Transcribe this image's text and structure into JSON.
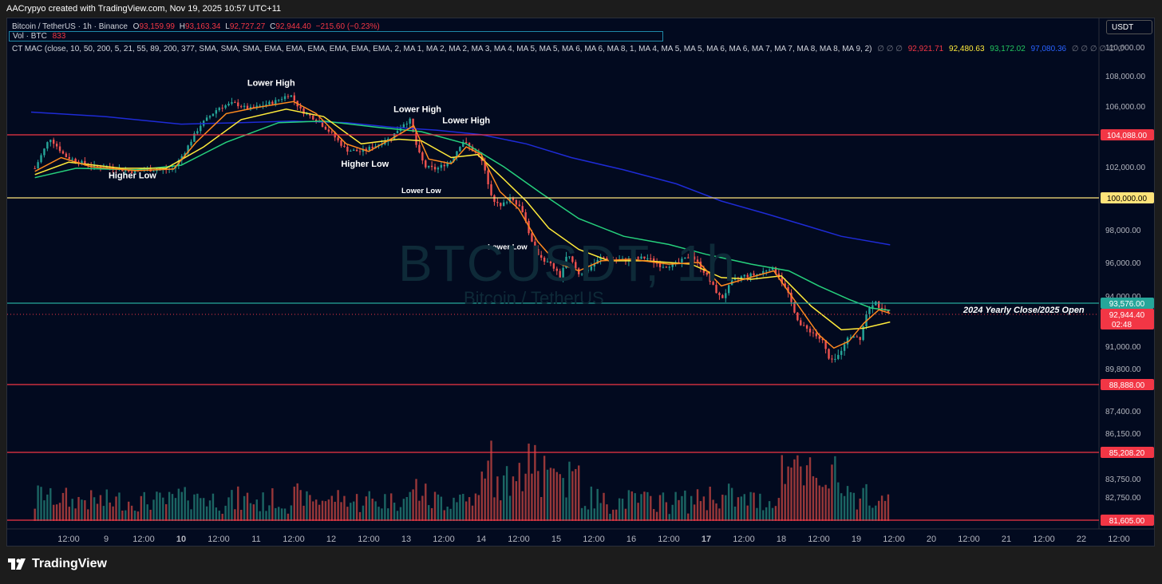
{
  "header": {
    "caption": "AACrypyo created with TradingView.com, Nov 19, 2025 10:57 UTC+11"
  },
  "legend": {
    "symbol": "Bitcoin / TetherUS · 1h · Binance",
    "open_label": "O",
    "open": "93,159.99",
    "high_label": "H",
    "high": "93,163.34",
    "low_label": "L",
    "low": "92,727.27",
    "close_label": "C",
    "close": "92,944.40",
    "change": "−215.60 (−0.23%)",
    "vol_label": "Vol · BTC",
    "vol_value": "833",
    "indicator": "CT MAC (close, 10, 50, 200, 5, 21, 55, 89, 200, 377, SMA, SMA, SMA, EMA, EMA, EMA, EMA, EMA, EMA, 2, MA 1, MA 2, MA 2, MA 3, MA 4, MA 5, MA 5, MA 6, MA 6, MA 8, 1, MA 4, MA 5, MA 5, MA 6, MA 6, MA 7, MA 7, MA 8, MA 8, MA 9, 2)",
    "empty_values": "∅  ∅  ∅",
    "ma_values": [
      "92,921.71",
      "92,480.63",
      "93,172.02",
      "97,080.36"
    ],
    "trailing": "∅  ∅  ∅  ∅  ∅  ∅"
  },
  "watermark": {
    "symbol": "BTCUSDT, 1h",
    "name": "Bitcoin / TetherUS"
  },
  "currency_button": "USDT",
  "level_caption": "2024 Yearly Close/2025 Open",
  "colors": {
    "background": "#020a1f",
    "up": "#26a69a",
    "down": "#ef5350",
    "ma_fast": "#ff8a1f",
    "ma_mid": "#ffeb3b",
    "ma_green": "#26d07c",
    "ma_blue": "#1e2bd6",
    "level_red": "#f23645",
    "level_yellow": "#ffe37a",
    "level_green": "#26a69a"
  },
  "logo": "TradingView",
  "chart_data": {
    "type": "candlestick",
    "title": "",
    "price_axis_ticks": [
      "110,000.00",
      "108,000.00",
      "106,000.00",
      "102,000.00",
      "98,000.00",
      "96,000.00",
      "94,000.00",
      "91,000.00",
      "89,800.00",
      "87,400.00",
      "86,150.00",
      "83,750.00",
      "82,750.00"
    ],
    "time_axis_ticks": [
      "12:00",
      "9",
      "12:00",
      "10",
      "12:00",
      "11",
      "12:00",
      "12",
      "12:00",
      "13",
      "12:00",
      "14",
      "12:00",
      "15",
      "12:00",
      "16",
      "12:00",
      "17",
      "12:00",
      "18",
      "12:00",
      "19",
      "12:00",
      "20",
      "12:00",
      "21",
      "12:00",
      "22",
      "12:00"
    ],
    "horizontal_levels": [
      {
        "price": 104088,
        "label": "104,088.00",
        "color": "red"
      },
      {
        "price": 100000,
        "label": "100,000.00",
        "color": "yellow"
      },
      {
        "price": 93576,
        "label": "93,576.00",
        "color": "green"
      },
      {
        "price": 92944.4,
        "label": "92,944.40",
        "sub": "02:48",
        "color": "red",
        "dotted": true
      },
      {
        "price": 88888,
        "label": "88,888.00",
        "color": "red"
      },
      {
        "price": 85208.2,
        "label": "85,208.20",
        "color": "red"
      },
      {
        "price": 81605,
        "label": "81,605.00",
        "color": "red"
      }
    ],
    "annotations": [
      {
        "text": "Lower High",
        "time": 11.2,
        "price": 107350
      },
      {
        "text": "Higher Low",
        "time": 9.35,
        "price": 101250
      },
      {
        "text": "Lower High",
        "time": 13.15,
        "price": 105600
      },
      {
        "text": "Higher Low",
        "time": 12.45,
        "price": 102000
      },
      {
        "text": "Lower High",
        "time": 13.8,
        "price": 104850
      },
      {
        "text": "Lower Low",
        "time": 13.2,
        "price": 100300
      },
      {
        "text": "Lower Low",
        "time": 14.35,
        "price": 96800
      }
    ],
    "price_path": [
      [
        8.05,
        101900
      ],
      [
        8.25,
        103900
      ],
      [
        8.45,
        102700
      ],
      [
        8.65,
        102300
      ],
      [
        8.85,
        102000
      ],
      [
        9.1,
        101950
      ],
      [
        9.3,
        101700
      ],
      [
        9.55,
        101800
      ],
      [
        9.75,
        101800
      ],
      [
        9.9,
        101900
      ],
      [
        10.05,
        103000
      ],
      [
        10.25,
        104700
      ],
      [
        10.5,
        105900
      ],
      [
        10.7,
        106200
      ],
      [
        10.9,
        105800
      ],
      [
        11.05,
        106000
      ],
      [
        11.25,
        106300
      ],
      [
        11.45,
        106800
      ],
      [
        11.6,
        105700
      ],
      [
        11.8,
        105100
      ],
      [
        12.0,
        104200
      ],
      [
        12.2,
        103100
      ],
      [
        12.4,
        103000
      ],
      [
        12.6,
        103400
      ],
      [
        12.8,
        103900
      ],
      [
        12.95,
        104800
      ],
      [
        13.05,
        105050
      ],
      [
        13.15,
        103100
      ],
      [
        13.25,
        102000
      ],
      [
        13.4,
        101850
      ],
      [
        13.6,
        102400
      ],
      [
        13.75,
        103700
      ],
      [
        13.85,
        103250
      ],
      [
        14.0,
        102500
      ],
      [
        14.15,
        100000
      ],
      [
        14.25,
        99400
      ],
      [
        14.4,
        100100
      ],
      [
        14.55,
        99200
      ],
      [
        14.7,
        96800
      ],
      [
        14.85,
        96100
      ],
      [
        14.95,
        95800
      ],
      [
        15.05,
        95100
      ],
      [
        15.15,
        96500
      ],
      [
        15.3,
        95300
      ],
      [
        15.4,
        95500
      ],
      [
        15.6,
        96300
      ],
      [
        15.8,
        96100
      ],
      [
        16.0,
        96200
      ],
      [
        16.2,
        96300
      ],
      [
        16.4,
        95800
      ],
      [
        16.6,
        95900
      ],
      [
        16.8,
        96450
      ],
      [
        16.95,
        95600
      ],
      [
        17.1,
        94500
      ],
      [
        17.2,
        93800
      ],
      [
        17.35,
        94900
      ],
      [
        17.5,
        95200
      ],
      [
        17.7,
        95300
      ],
      [
        17.85,
        95700
      ],
      [
        17.95,
        95350
      ],
      [
        18.1,
        94000
      ],
      [
        18.25,
        92300
      ],
      [
        18.4,
        91900
      ],
      [
        18.55,
        91300
      ],
      [
        18.65,
        90100
      ],
      [
        18.75,
        90400
      ],
      [
        18.85,
        91300
      ],
      [
        18.95,
        91700
      ],
      [
        19.05,
        91500
      ],
      [
        19.15,
        93300
      ],
      [
        19.25,
        93700
      ],
      [
        19.35,
        93100
      ],
      [
        19.45,
        92944
      ]
    ],
    "ma_fast_path": [
      [
        8.05,
        101700
      ],
      [
        8.4,
        102600
      ],
      [
        8.8,
        102000
      ],
      [
        9.4,
        101750
      ],
      [
        9.9,
        101850
      ],
      [
        10.2,
        103600
      ],
      [
        10.6,
        105500
      ],
      [
        11.0,
        105900
      ],
      [
        11.5,
        106300
      ],
      [
        11.8,
        105500
      ],
      [
        12.2,
        103500
      ],
      [
        12.5,
        103000
      ],
      [
        12.9,
        104100
      ],
      [
        13.1,
        104700
      ],
      [
        13.3,
        102500
      ],
      [
        13.6,
        102200
      ],
      [
        13.8,
        103300
      ],
      [
        14.0,
        102800
      ],
      [
        14.25,
        100400
      ],
      [
        14.5,
        99300
      ],
      [
        14.75,
        97300
      ],
      [
        15.0,
        96000
      ],
      [
        15.3,
        95500
      ],
      [
        15.6,
        96100
      ],
      [
        16.0,
        96200
      ],
      [
        16.5,
        95900
      ],
      [
        16.9,
        96000
      ],
      [
        17.2,
        94600
      ],
      [
        17.5,
        95000
      ],
      [
        17.9,
        95500
      ],
      [
        18.2,
        93600
      ],
      [
        18.5,
        91700
      ],
      [
        18.7,
        90900
      ],
      [
        18.9,
        91300
      ],
      [
        19.1,
        92400
      ],
      [
        19.3,
        93200
      ],
      [
        19.45,
        93000
      ]
    ],
    "ma_mid_path": [
      [
        8.05,
        101500
      ],
      [
        8.5,
        102300
      ],
      [
        9.2,
        101900
      ],
      [
        9.8,
        101900
      ],
      [
        10.3,
        103300
      ],
      [
        10.8,
        105100
      ],
      [
        11.4,
        105800
      ],
      [
        11.9,
        105300
      ],
      [
        12.4,
        103500
      ],
      [
        12.9,
        103800
      ],
      [
        13.2,
        103700
      ],
      [
        13.6,
        102600
      ],
      [
        13.95,
        102800
      ],
      [
        14.3,
        101200
      ],
      [
        14.6,
        99800
      ],
      [
        14.9,
        98100
      ],
      [
        15.3,
        96800
      ],
      [
        15.7,
        96100
      ],
      [
        16.2,
        96100
      ],
      [
        16.8,
        95900
      ],
      [
        17.2,
        95100
      ],
      [
        17.6,
        95000
      ],
      [
        18.0,
        95200
      ],
      [
        18.4,
        93400
      ],
      [
        18.8,
        92000
      ],
      [
        19.1,
        92100
      ],
      [
        19.45,
        92480
      ]
    ],
    "ma_green_path": [
      [
        8.05,
        101300
      ],
      [
        8.6,
        101900
      ],
      [
        9.4,
        101800
      ],
      [
        10.0,
        102100
      ],
      [
        10.6,
        103600
      ],
      [
        11.3,
        104900
      ],
      [
        11.9,
        105000
      ],
      [
        12.6,
        104600
      ],
      [
        13.2,
        104300
      ],
      [
        13.8,
        103500
      ],
      [
        14.3,
        102000
      ],
      [
        14.8,
        100300
      ],
      [
        15.3,
        98700
      ],
      [
        15.9,
        97600
      ],
      [
        16.5,
        97100
      ],
      [
        17.0,
        96500
      ],
      [
        17.6,
        95900
      ],
      [
        18.1,
        95500
      ],
      [
        18.5,
        94600
      ],
      [
        18.9,
        93800
      ],
      [
        19.2,
        93300
      ],
      [
        19.45,
        93172
      ]
    ],
    "ma_blue_path": [
      [
        8.0,
        105600
      ],
      [
        9.0,
        105300
      ],
      [
        10.0,
        104800
      ],
      [
        10.8,
        104900
      ],
      [
        11.5,
        105000
      ],
      [
        12.2,
        104900
      ],
      [
        12.8,
        104600
      ],
      [
        13.4,
        104400
      ],
      [
        14.0,
        104100
      ],
      [
        14.6,
        103500
      ],
      [
        15.2,
        102600
      ],
      [
        15.9,
        101800
      ],
      [
        16.6,
        100900
      ],
      [
        17.2,
        99800
      ],
      [
        17.8,
        99000
      ],
      [
        18.3,
        98300
      ],
      [
        18.8,
        97600
      ],
      [
        19.45,
        97080
      ]
    ],
    "volume_profile": "higher volume during sell-offs on 14, 15 and 18"
  }
}
